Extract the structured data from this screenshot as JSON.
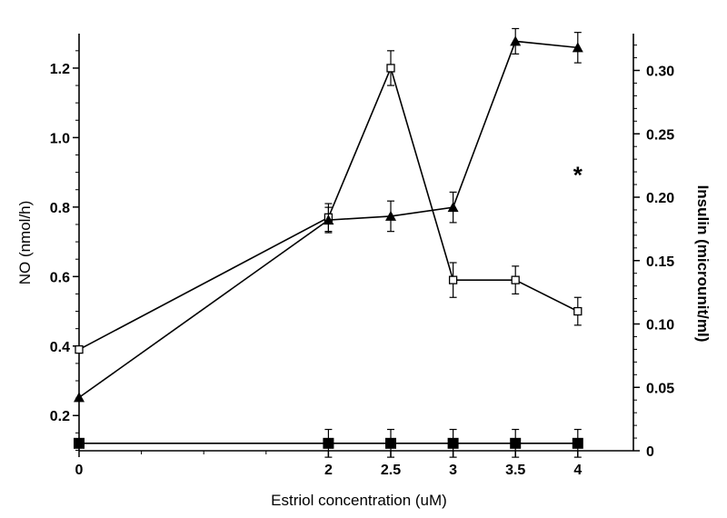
{
  "chart_data": {
    "type": "line",
    "title": "",
    "xlabel": "Estriol concentration (uM)",
    "ylabel_left": "NO (nmol/h)",
    "ylabel_right": "Insulin (microunit/ml)",
    "x_ticks": [
      "0",
      "2",
      "2.5",
      "3",
      "3.5",
      "4"
    ],
    "y_left_ticks": [
      "0.2",
      "0.4",
      "0.6",
      "0.8",
      "1.0",
      "1.2"
    ],
    "y_right_ticks": [
      "0",
      "0.05",
      "0.10",
      "0.15",
      "0.20",
      "0.25",
      "0.30"
    ],
    "xlim": [
      0,
      4.45
    ],
    "ylim_left": [
      0.1,
      1.3
    ],
    "ylim_right": [
      0,
      0.33
    ],
    "grid": false,
    "series": [
      {
        "marker": "open-square",
        "axis": "left",
        "x": [
          0,
          2,
          2.5,
          3,
          3.5,
          4
        ],
        "y": [
          0.39,
          0.77,
          1.2,
          0.59,
          0.59,
          0.5
        ],
        "error": [
          0,
          0.04,
          0.05,
          0.05,
          0.04,
          0.04
        ]
      },
      {
        "marker": "filled-triangle",
        "axis": "right",
        "x": [
          0,
          2,
          2.5,
          3,
          3.5,
          4
        ],
        "y": [
          0.042,
          0.182,
          0.185,
          0.192,
          0.323,
          0.318
        ],
        "error": [
          0,
          0.01,
          0.012,
          0.012,
          0.01,
          0.012
        ]
      },
      {
        "marker": "filled-square",
        "axis": "left",
        "x": [
          0,
          2,
          2.5,
          3,
          3.5,
          4
        ],
        "y": [
          0.12,
          0.12,
          0.12,
          0.12,
          0.12,
          0.12
        ],
        "error": [
          0,
          0.04,
          0.04,
          0.04,
          0.04,
          0.04
        ]
      }
    ],
    "annotations": [
      {
        "text": "*",
        "x": 4.0,
        "y_left": 0.9
      }
    ]
  }
}
